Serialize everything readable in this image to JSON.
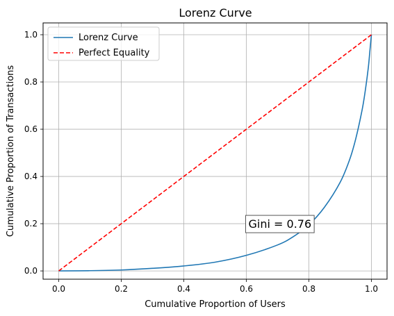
{
  "chart_data": {
    "type": "line",
    "title": "Lorenz Curve",
    "xlabel": "Cumulative Proportion of Users",
    "ylabel": "Cumulative Proportion of Transactions",
    "xlim": [
      -0.05,
      1.05
    ],
    "ylim": [
      -0.035,
      1.05
    ],
    "x_ticks": [
      "0.0",
      "0.2",
      "0.4",
      "0.6",
      "0.8",
      "1.0"
    ],
    "y_ticks": [
      "0.0",
      "0.2",
      "0.4",
      "0.6",
      "0.8",
      "1.0"
    ],
    "grid": true,
    "legend_position": "top-left",
    "series": [
      {
        "name": "Lorenz Curve",
        "color": "#1f77b4",
        "style": "solid",
        "x": [
          0.0,
          0.1,
          0.2,
          0.3,
          0.4,
          0.5,
          0.6,
          0.7,
          0.75,
          0.8,
          0.85,
          0.9,
          0.93,
          0.95,
          0.97,
          0.98,
          0.99,
          0.995,
          1.0
        ],
        "y": [
          0.0,
          0.001,
          0.004,
          0.011,
          0.021,
          0.037,
          0.066,
          0.11,
          0.145,
          0.195,
          0.27,
          0.375,
          0.47,
          0.56,
          0.68,
          0.76,
          0.86,
          0.93,
          1.0
        ]
      },
      {
        "name": "Perfect Equality",
        "color": "#ff0000",
        "style": "dashed",
        "x": [
          0.0,
          1.0
        ],
        "y": [
          0.0,
          1.0
        ]
      }
    ],
    "annotations": [
      {
        "text": "Gini = 0.76",
        "x": 0.6,
        "y": 0.2
      }
    ]
  }
}
